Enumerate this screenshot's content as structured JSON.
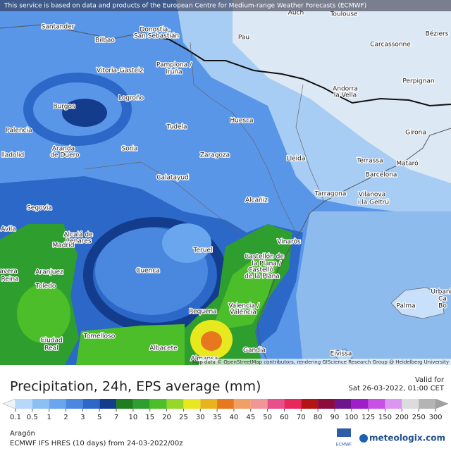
{
  "header": {
    "notice": "This service is based on data and products of the European Centre for Medium-range Weather Forecasts (ECMWF)"
  },
  "map": {
    "labels": [
      "Santander",
      "Bilbao",
      "Donostia-",
      "San Sebastián",
      "Auch",
      "Toulouse",
      "Pau",
      "Béziers",
      "Carcassonne",
      "Pamplona /",
      "Iruña",
      "Vitoria-Gasteiz",
      "Logroño",
      "Andorra",
      "la Vella",
      "Perpignan",
      "Burgos",
      "Tudela",
      "Huesca",
      "Palencia",
      "Girona",
      "Aranda",
      "de Duero",
      "Soria",
      "Zaragoza",
      "Lleida",
      "Terrassa",
      "Mataró",
      "lladolid",
      "Barcelona",
      "Calatayud",
      "Tarragona",
      "Vilanova",
      "i la Geltrú",
      "Alcañiz",
      "Segovia",
      "Avila",
      "Alcalá de",
      "Henares",
      "Madrid",
      "Vinaròs",
      "Castellón de",
      "la Plana /",
      "Castelló",
      "de la Plana",
      "Teruel",
      "Aranjuez",
      "Cuenca",
      "avera",
      "Reina",
      "Toledo",
      "Valencia /",
      "València",
      "Requena",
      "Palma",
      "Urbanit",
      "Ca",
      "Bo",
      "Ciudad",
      "Real",
      "Tomelloso",
      "Albacete",
      "Almansa",
      "Gandia",
      "Eivissa"
    ],
    "attribution": "Map data © OpenStreetMap contributors, rendering GIScience Research Group @ Heidelberg University"
  },
  "legend": {
    "title": "Precipitation, 24h, EPS average (mm)",
    "valid_label": "Valid for",
    "valid_time": "Sat 26-03-2022, 01:00 CET",
    "ticks": [
      0.1,
      0.5,
      1,
      2,
      3,
      5,
      7,
      10,
      15,
      20,
      25,
      30,
      35,
      40,
      45,
      50,
      60,
      70,
      80,
      90,
      100,
      125,
      150,
      200,
      250,
      300
    ],
    "colors": [
      "#b8d8fa",
      "#8cc0f5",
      "#6aa6ee",
      "#4a88e0",
      "#2c68c8",
      "#143c8c",
      "#1e7d1e",
      "#2e9e2e",
      "#4cbe2a",
      "#96d828",
      "#e8e81e",
      "#e8b41e",
      "#e8781e",
      "#f0a064",
      "#f09696",
      "#e8508c",
      "#e8285a",
      "#b41414",
      "#8c0a3c",
      "#6e148c",
      "#a01ec8",
      "#c850e6",
      "#dc96f0",
      "#dcdcdc",
      "#b4b4b4"
    ],
    "under_color": "#eef4fb",
    "over_color": "#a0a0a0"
  },
  "footer": {
    "region": "Aragón",
    "model": "ECMWF IFS HRES (10 days) from 24-03-2022/00z",
    "logo_left": "ECMWF",
    "logo_right": "meteologix.com"
  }
}
